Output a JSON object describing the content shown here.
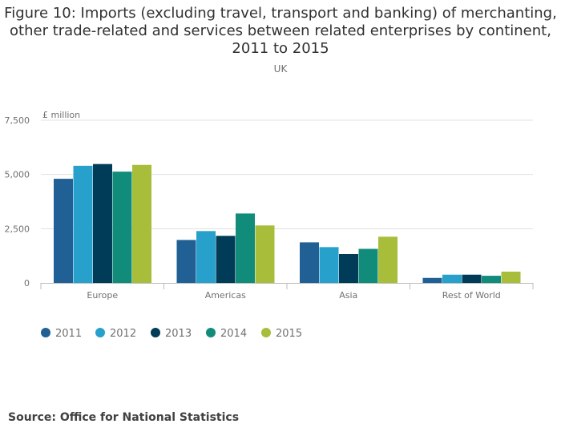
{
  "header": {
    "title_lines": [
      "Figure 10: Imports (excluding travel, transport and banking) of merchanting,",
      "other trade-related and services between related enterprises by continent,",
      "2011 to 2015"
    ],
    "subtitle": "UK"
  },
  "footer": {
    "source": "Source: Office for National Statistics"
  },
  "chart_data": {
    "type": "bar",
    "title": "Figure 10: Imports (excluding travel, transport and banking) of merchanting, other trade-related and services between related enterprises by continent, 2011 to 2015",
    "subtitle": "UK",
    "xlabel": "",
    "ylabel": "£ million",
    "ylim": [
      0,
      7500
    ],
    "yticks": [
      0,
      2500,
      5000,
      7500
    ],
    "ytick_labels": [
      "0",
      "2,500",
      "5,000",
      "7,500"
    ],
    "grid": true,
    "legend_position": "bottom-left",
    "categories": [
      "Europe",
      "Americas",
      "Asia",
      "Rest of World"
    ],
    "series": [
      {
        "name": "2011",
        "color": "#206095",
        "values": [
          4800,
          1980,
          1870,
          230
        ]
      },
      {
        "name": "2012",
        "color": "#27a0cc",
        "values": [
          5400,
          2390,
          1650,
          380
        ]
      },
      {
        "name": "2013",
        "color": "#003c57",
        "values": [
          5480,
          2170,
          1330,
          380
        ]
      },
      {
        "name": "2014",
        "color": "#118c7b",
        "values": [
          5130,
          3200,
          1570,
          330
        ]
      },
      {
        "name": "2015",
        "color": "#a8bd3a",
        "values": [
          5440,
          2650,
          2130,
          520
        ]
      }
    ]
  }
}
